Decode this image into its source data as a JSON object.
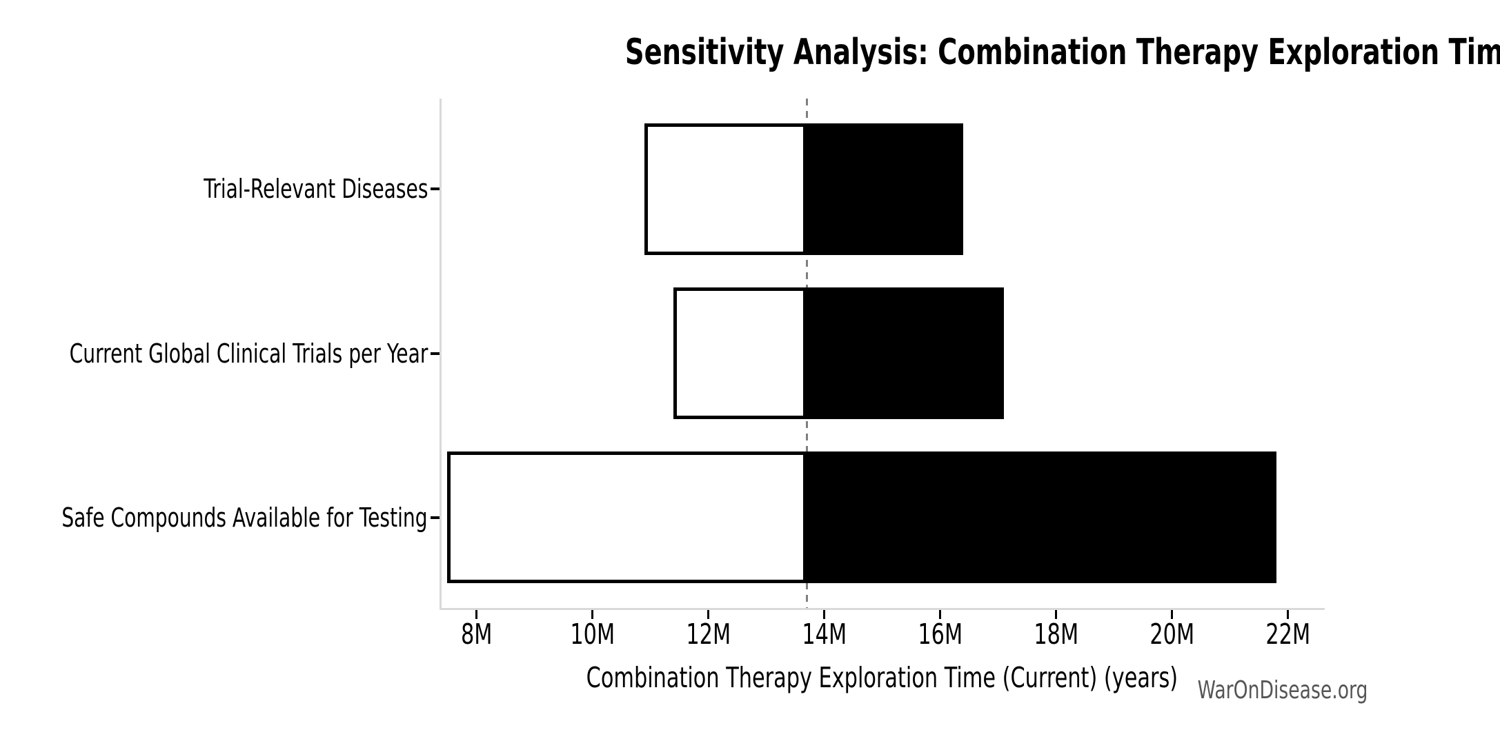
{
  "watermark": {
    "text": "WarOnDisease.org"
  },
  "chart_data": {
    "type": "bar",
    "orientation": "horizontal",
    "title": "Sensitivity Analysis: Combination Therapy Exploration Time (Current)",
    "xlabel": "Combination Therapy Exploration Time (Current) (years)",
    "ylabel": "",
    "categories": [
      "Trial-Relevant Diseases",
      "Current Global Clinical Trials per Year",
      "Safe Compounds Available for Testing"
    ],
    "series": [
      {
        "name": "low_estimate_white_segment",
        "values": [
          10.9,
          11.4,
          7.5
        ]
      },
      {
        "name": "high_estimate_black_segment",
        "values": [
          16.4,
          17.1,
          21.8
        ]
      }
    ],
    "baseline": 13.7,
    "xlim": [
      7.4,
      22.6
    ],
    "xticks": [
      8,
      10,
      12,
      14,
      16,
      18,
      20,
      22
    ],
    "xtick_labels": [
      "8M",
      "10M",
      "12M",
      "14M",
      "16M",
      "18M",
      "20M",
      "22M"
    ],
    "value_unit": "millions of years",
    "grid": false,
    "legend": "none",
    "colors": {
      "bar_low_fill": "#ffffff",
      "bar_high_fill": "#000000",
      "bar_edge": "#000000",
      "baseline_dash": "#7f7f7f",
      "axis_spine": "#d9d9d9",
      "tick_mark": "#000000",
      "text": "#000000",
      "watermark": "#555555"
    }
  }
}
